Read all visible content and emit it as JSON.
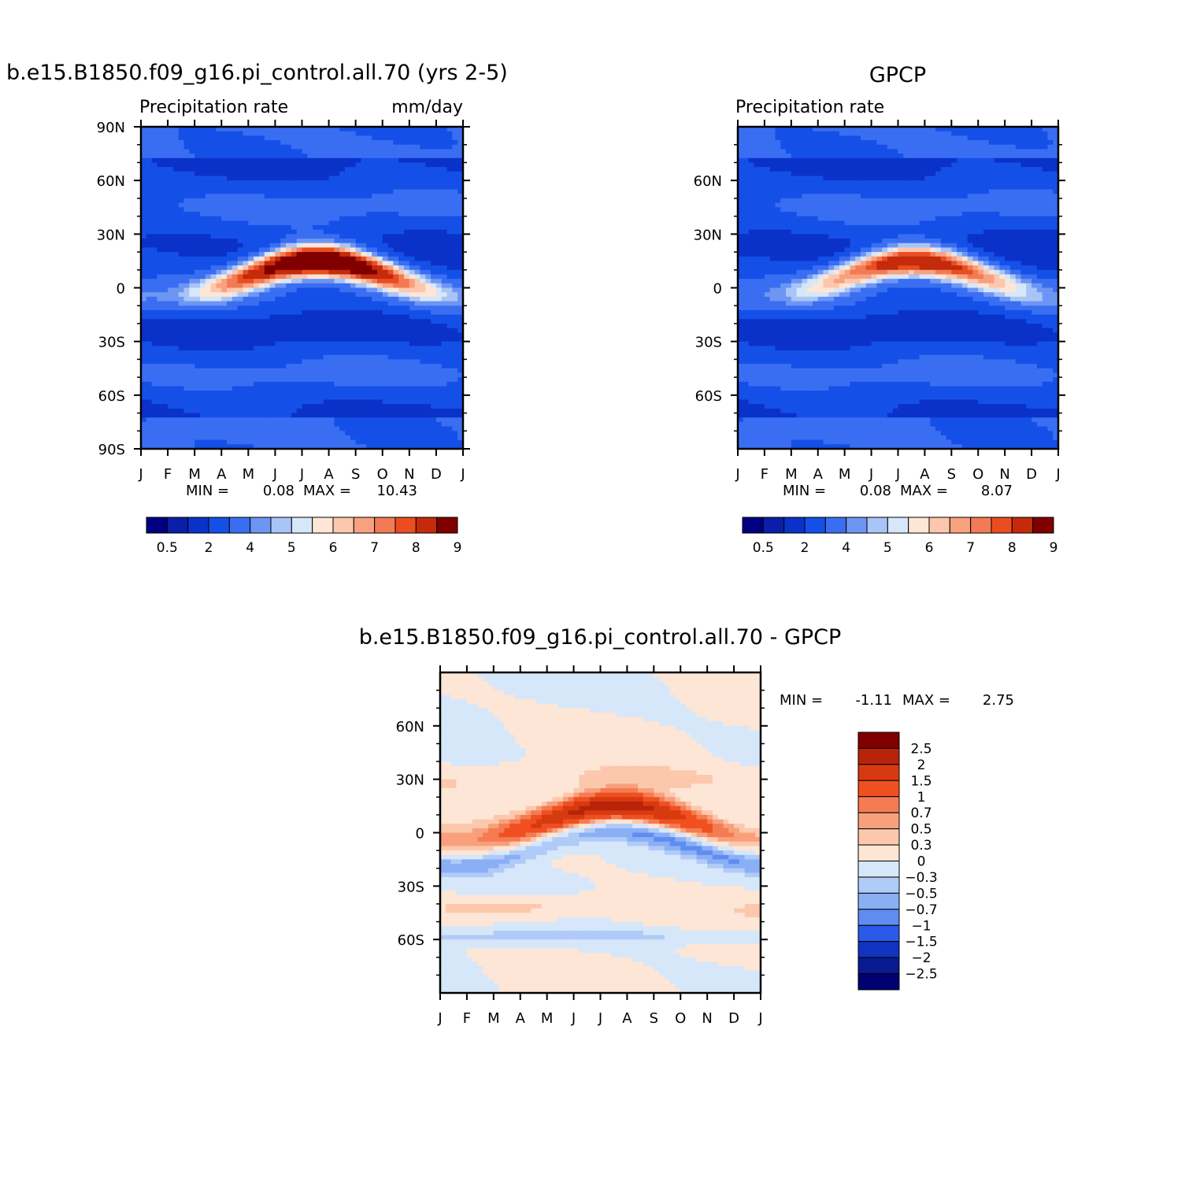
{
  "chart_data": [
    {
      "type": "heatmap",
      "title": "b.e15.B1850.f09_g16.pi_control.all.70 (yrs 2-5)",
      "subtitle_left": "Precipitation rate",
      "subtitle_right": "mm/day",
      "stats": {
        "min_label": "MIN =",
        "min": "0.08",
        "max_label": "MAX =",
        "max": "10.43"
      },
      "x_ticks": [
        "J",
        "F",
        "M",
        "A",
        "M",
        "J",
        "J",
        "A",
        "S",
        "O",
        "N",
        "D",
        "J"
      ],
      "y_ticks": [
        "90N",
        "60N",
        "30N",
        "0",
        "30S",
        "60S",
        "90S"
      ],
      "ylim": [
        -90,
        90
      ],
      "colorbar": {
        "labels": [
          "0.5",
          "2",
          "4",
          "5",
          "6",
          "7",
          "8",
          "9"
        ],
        "colors": [
          "#000080",
          "#0a1fa8",
          "#0b32c8",
          "#1450e8",
          "#3a6ef2",
          "#6d95f3",
          "#a9c4f6",
          "#d7e7fa",
          "#fde6d6",
          "#fcc7ad",
          "#f8a17f",
          "#f27a55",
          "#ea4d20",
          "#c42a0c",
          "#800000"
        ]
      },
      "model": "ctrl",
      "itcz_max": 10.43
    },
    {
      "type": "heatmap",
      "title": "GPCP",
      "subtitle_left": "Precipitation rate",
      "stats": {
        "min_label": "MIN =",
        "min": "0.08",
        "max_label": "MAX =",
        "max": "8.07"
      },
      "x_ticks": [
        "J",
        "F",
        "M",
        "A",
        "M",
        "J",
        "J",
        "A",
        "S",
        "O",
        "N",
        "D",
        "J"
      ],
      "y_ticks": [
        "60N",
        "30N",
        "0",
        "30S",
        "60S"
      ],
      "ylim": [
        -90,
        90
      ],
      "colorbar": {
        "labels": [
          "0.5",
          "2",
          "4",
          "5",
          "6",
          "7",
          "8",
          "9"
        ],
        "colors": [
          "#000080",
          "#0a1fa8",
          "#0b32c8",
          "#1450e8",
          "#3a6ef2",
          "#6d95f3",
          "#a9c4f6",
          "#d7e7fa",
          "#fde6d6",
          "#fcc7ad",
          "#f8a17f",
          "#f27a55",
          "#ea4d20",
          "#c42a0c",
          "#800000"
        ]
      },
      "model": "obs",
      "itcz_max": 8.07
    },
    {
      "type": "heatmap",
      "title": "b.e15.B1850.f09_g16.pi_control.all.70 - GPCP",
      "stats": {
        "min_label": "MIN =",
        "min": "-1.11",
        "max_label": "MAX =",
        "max": "2.75"
      },
      "x_ticks": [
        "J",
        "F",
        "M",
        "A",
        "M",
        "J",
        "J",
        "A",
        "S",
        "O",
        "N",
        "D",
        "J"
      ],
      "y_ticks": [
        "60N",
        "30N",
        "0",
        "30S",
        "60S"
      ],
      "ylim": [
        -90,
        90
      ],
      "colorbar": {
        "labels": [
          "2.5",
          "2",
          "1.5",
          "1",
          "0.7",
          "0.5",
          "0.3",
          "0",
          "−0.3",
          "−0.5",
          "−0.7",
          "−1",
          "−1.5",
          "−2",
          "−2.5"
        ],
        "colors": [
          "#800000",
          "#b8240a",
          "#d83a10",
          "#f05020",
          "#f47b52",
          "#f8a07c",
          "#fcc8ad",
          "#fde6d6",
          "#d7e7fa",
          "#b0cbf7",
          "#8aaff5",
          "#5f8cf1",
          "#2b5ae8",
          "#1034c0",
          "#0a1a90",
          "#000070"
        ]
      },
      "model": "diff"
    }
  ]
}
